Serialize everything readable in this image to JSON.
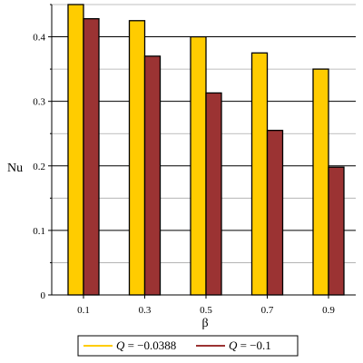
{
  "chart_data": {
    "type": "bar",
    "categories": [
      "0.1",
      "0.3",
      "0.5",
      "0.7",
      "0.9"
    ],
    "series": [
      {
        "name": "Q = −0.0388",
        "legend_symbol": "Q",
        "legend_value": " = −0.0388",
        "color": "#FFCC00",
        "values": [
          0.45,
          0.425,
          0.4,
          0.375,
          0.35
        ]
      },
      {
        "name": "Q = −0.1",
        "legend_symbol": "Q",
        "legend_value": " = −0.1",
        "color": "#9B3333",
        "values": [
          0.428,
          0.37,
          0.313,
          0.255,
          0.198
        ]
      }
    ],
    "xlabel": "β",
    "ylabel": "Nu",
    "ylim": [
      0,
      0.45
    ],
    "yticks": [
      "0",
      "0.1",
      "0.2",
      "0.3",
      "0.4"
    ],
    "ytick_values": [
      0,
      0.1,
      0.2,
      0.3,
      0.4
    ],
    "grid": "horizontal",
    "legend_position": "bottom"
  }
}
